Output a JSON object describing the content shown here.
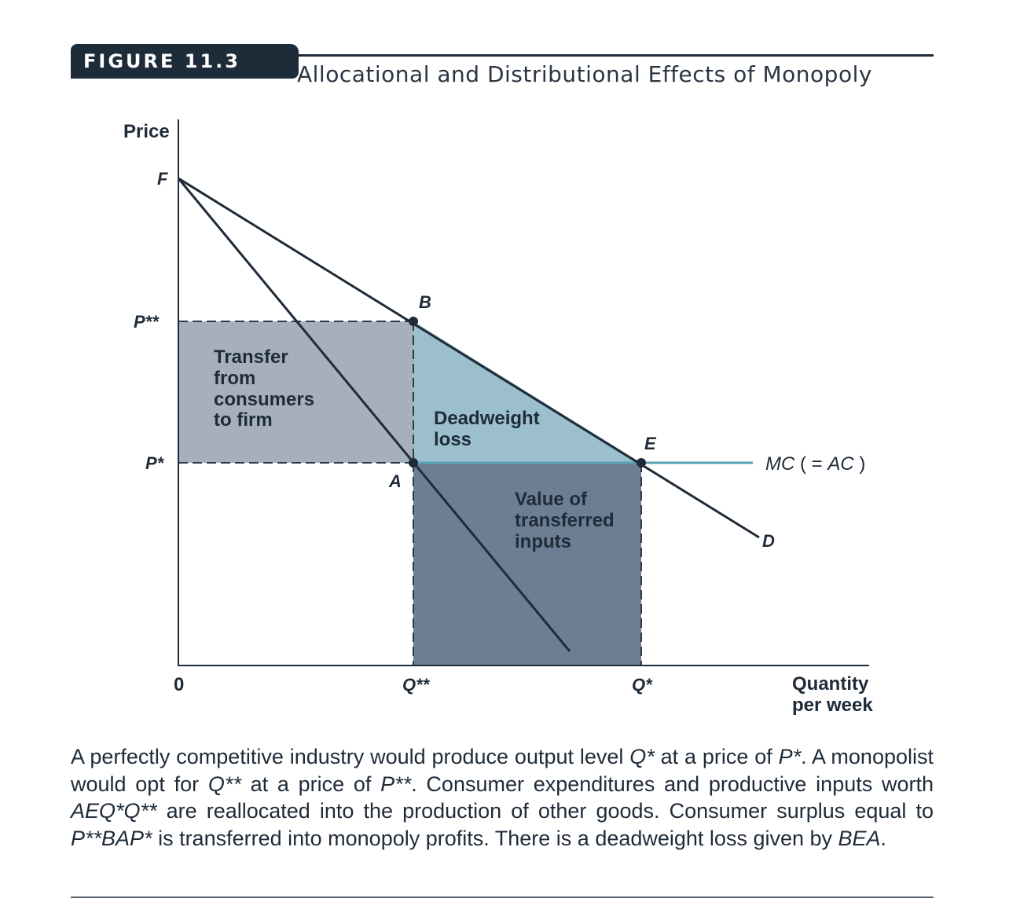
{
  "header": {
    "badge": "FIGURE 11.3",
    "title": "Allocational and Distributional Effects of Monopoly"
  },
  "axes": {
    "y_label": "Price",
    "x_label_line1": "Quantity",
    "x_label_line2": "per week",
    "origin": "0"
  },
  "ticks": {
    "p_double_star": "P**",
    "p_star": "P*",
    "q_double_star": "Q**",
    "q_star": "Q*"
  },
  "points": {
    "F": "F",
    "B": "B",
    "E": "E",
    "A": "A",
    "D": "D"
  },
  "curves": {
    "mc_prefix": "MC",
    "mc_paren": "( = ",
    "mc_ac": "AC",
    "mc_close": ")"
  },
  "areas": {
    "transfer": [
      "Transfer",
      "from",
      "consumers",
      "to firm"
    ],
    "deadweight": [
      "Deadweight",
      "loss"
    ],
    "inputs": [
      "Value of",
      "transferred",
      "inputs"
    ]
  },
  "colors": {
    "transfer_fill": "#a5b0bc",
    "deadweight_fill": "#9bbfcd",
    "inputs_fill": "#6c7e93",
    "mc_line": "#5aa3b4",
    "ink": "#1f2b38"
  },
  "caption": {
    "s1": "A perfectly competitive industry would produce output level ",
    "s2": "Q*",
    "s3": " at a price of ",
    "s4": "P*",
    "s5": ". A monopolist would opt for ",
    "s6": "Q**",
    "s7": " at a price of ",
    "s8": "P**",
    "s9": ". Consumer expenditures and productive inputs worth ",
    "s10": "AEQ*Q**",
    "s11": " are reallocated into the production of other goods. Consumer surplus equal to ",
    "s12": "P**BAP*",
    "s13": " is transferred into monopoly profits. There is a deadweight loss given by ",
    "s14": "BEA",
    "s15": "."
  }
}
